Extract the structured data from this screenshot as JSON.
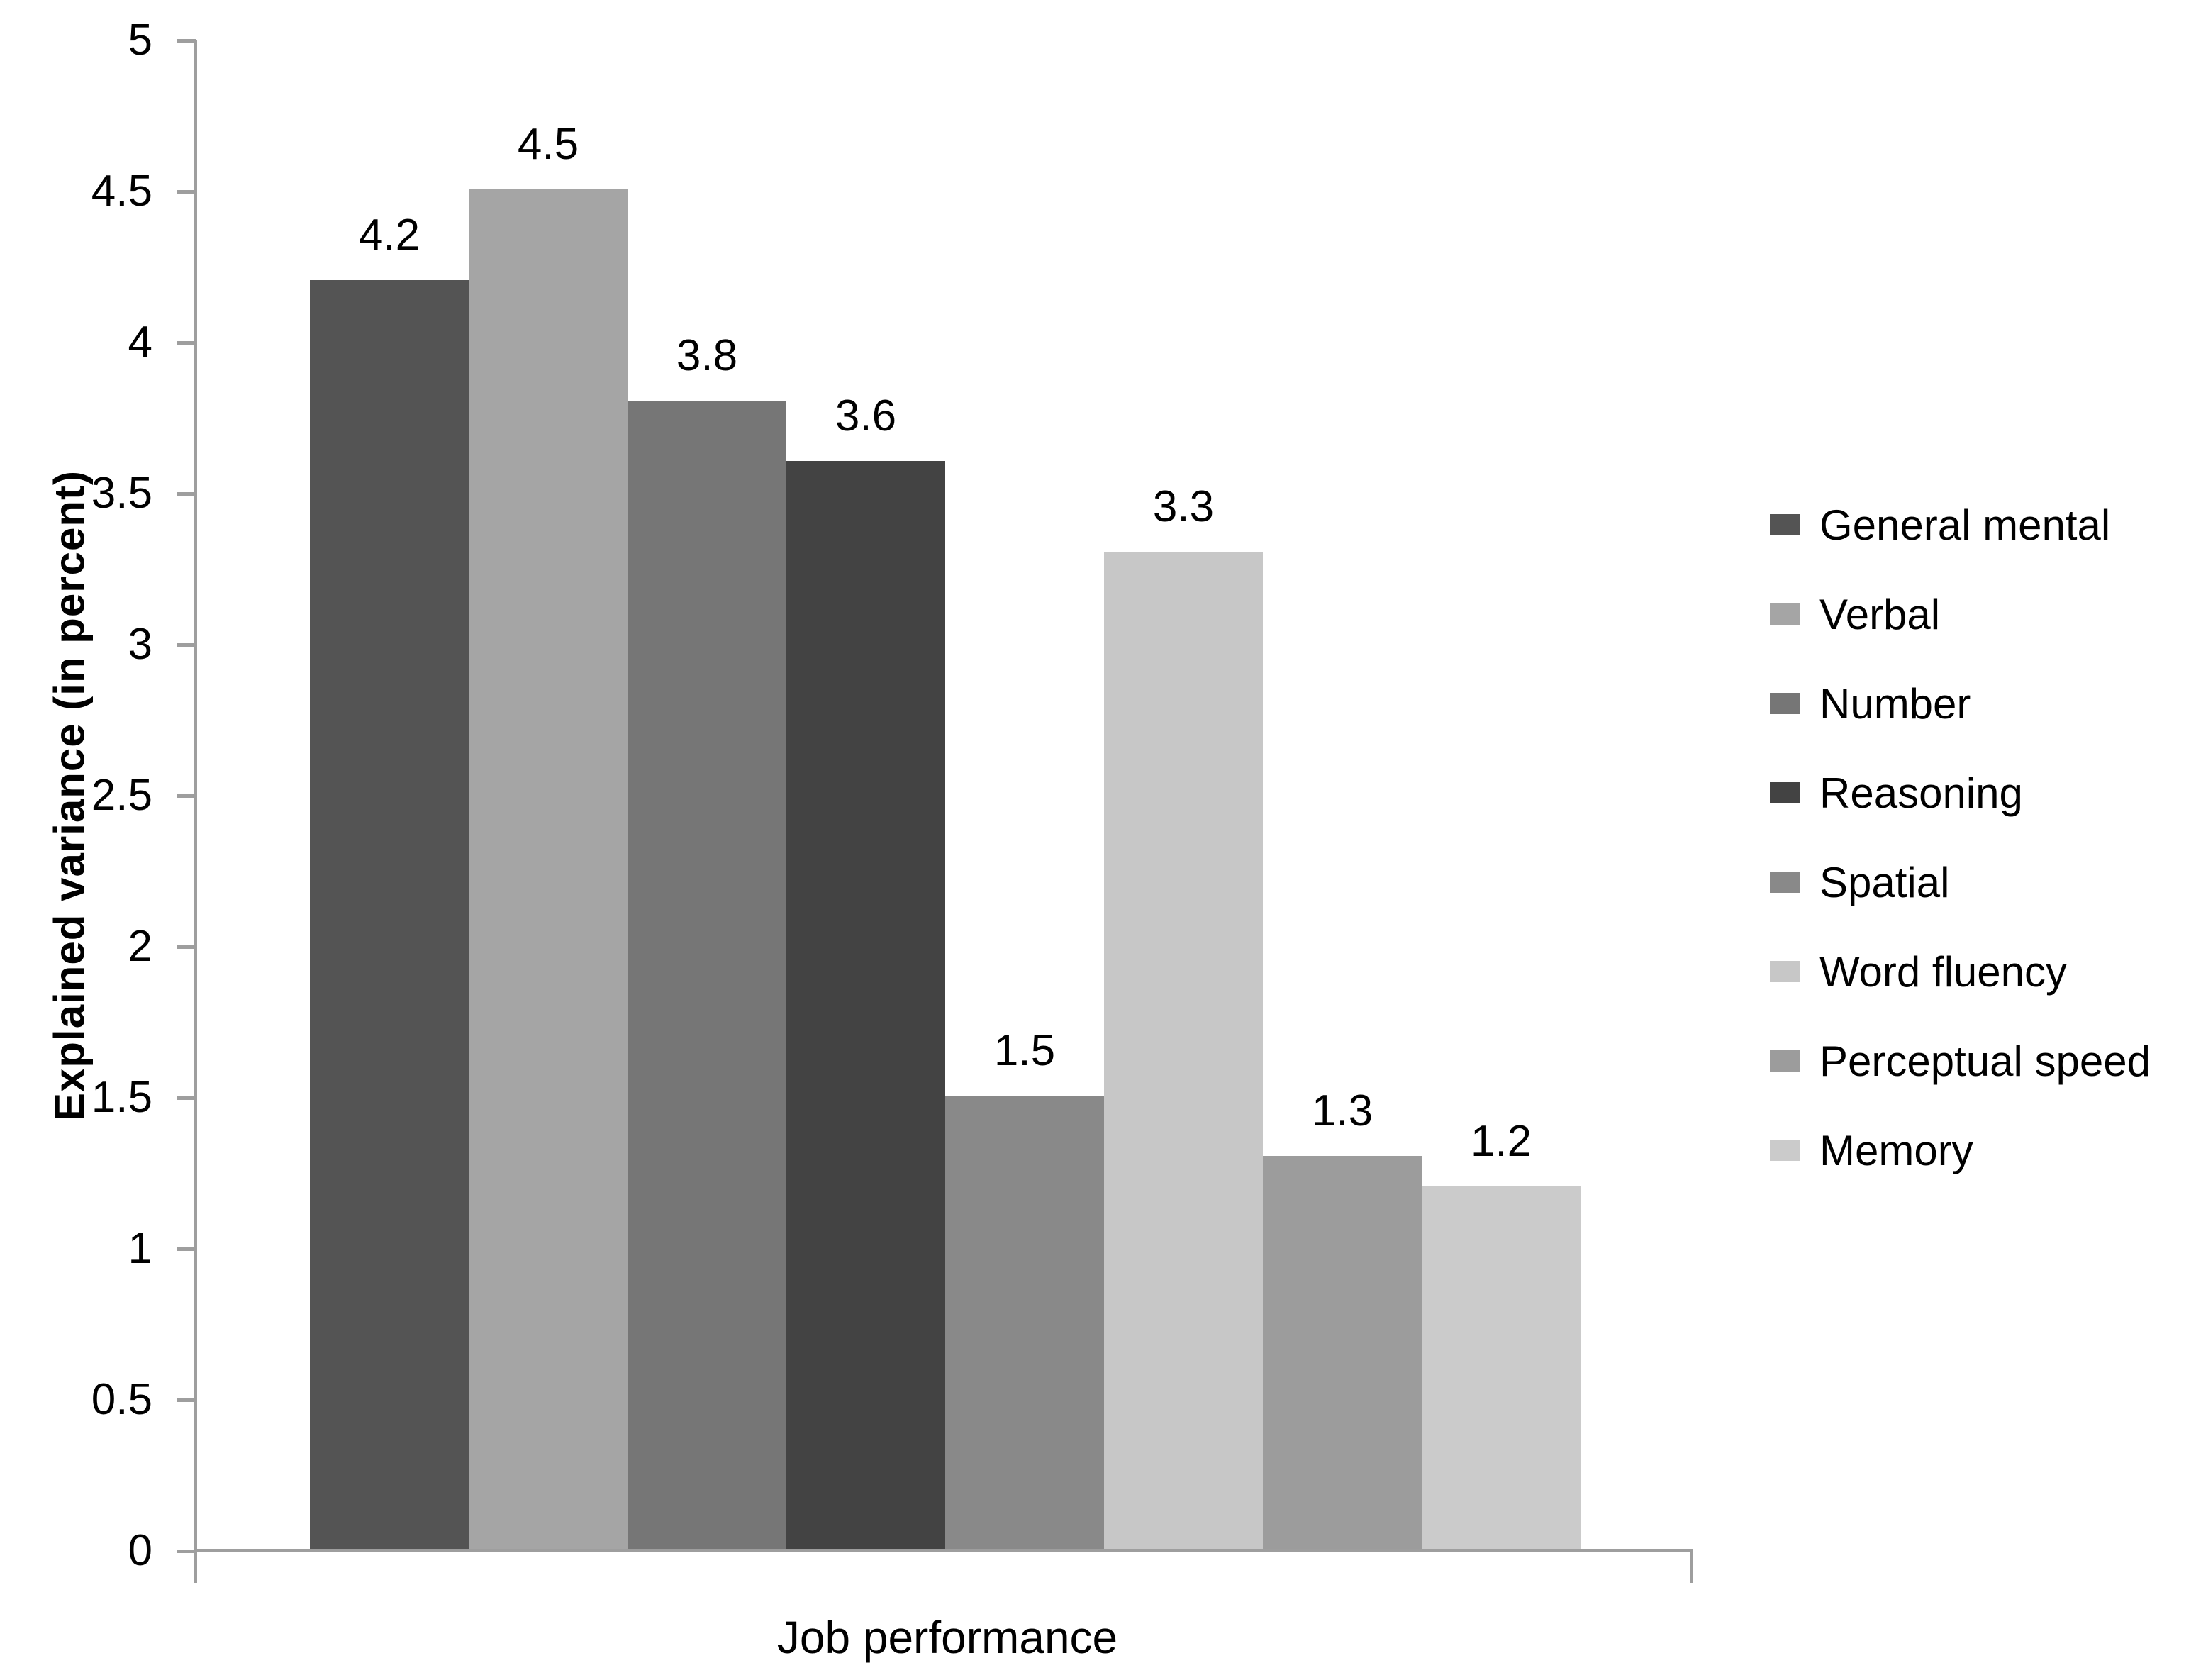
{
  "chart_data": {
    "type": "bar",
    "title": "",
    "xlabel": "Job performance",
    "ylabel": "Explained variance (in percent)",
    "categories": [
      "Job performance"
    ],
    "series": [
      {
        "name": "General mental",
        "value": 4.2,
        "label": "4.2",
        "color": "#545454"
      },
      {
        "name": "Verbal",
        "value": 4.5,
        "label": "4.5",
        "color": "#a5a5a5"
      },
      {
        "name": "Number",
        "value": 3.8,
        "label": "3.8",
        "color": "#767676"
      },
      {
        "name": "Reasoning",
        "value": 3.6,
        "label": "3.6",
        "color": "#434343"
      },
      {
        "name": "Spatial",
        "value": 1.5,
        "label": "1.5",
        "color": "#898989"
      },
      {
        "name": "Word fluency",
        "value": 3.3,
        "label": "3.3",
        "color": "#c7c7c7"
      },
      {
        "name": "Perceptual speed",
        "value": 1.3,
        "label": "1.3",
        "color": "#9c9c9c"
      },
      {
        "name": "Memory",
        "value": 1.2,
        "label": "1.2",
        "color": "#cbcbcb"
      }
    ],
    "ylim": [
      0,
      5
    ],
    "ytick_step": 0.5,
    "ytick_labels": [
      "5",
      "4.5",
      "4",
      "3.5",
      "3",
      "2.5",
      "2",
      "1.5",
      "1",
      "0.5",
      "0"
    ],
    "grid": false,
    "legend_position": "right",
    "axis_color": "#9e9e9e",
    "text_color": "#000000",
    "background_color": "#ffffff"
  }
}
